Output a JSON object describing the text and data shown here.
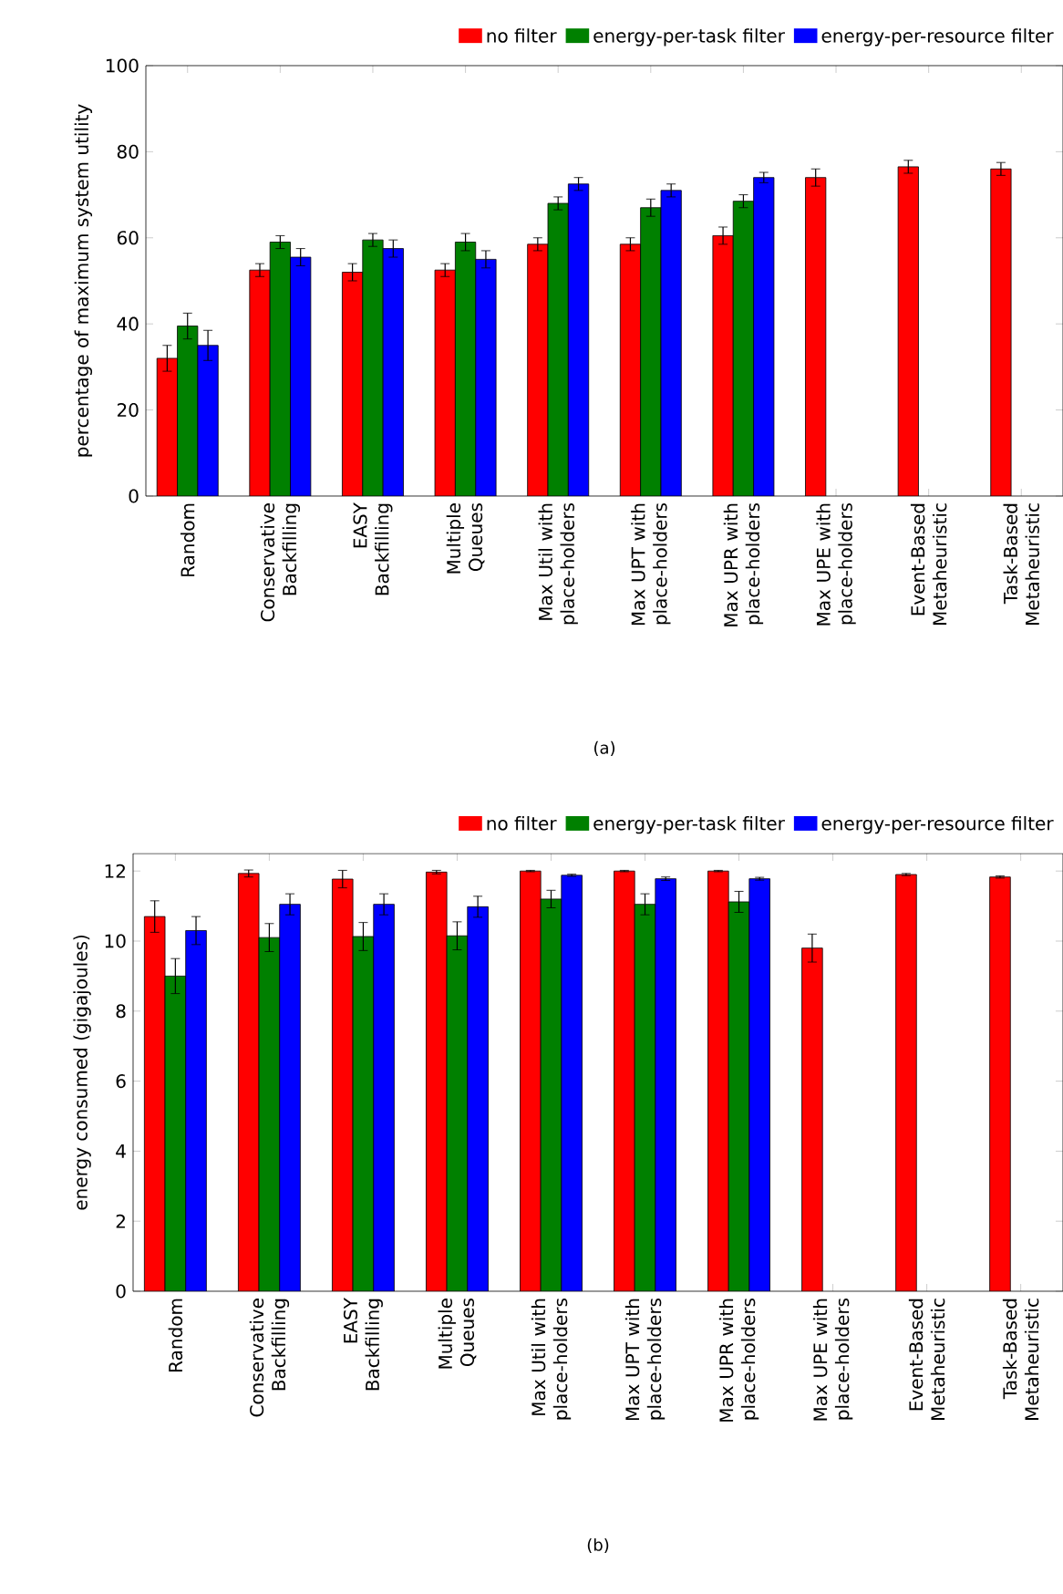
{
  "chart_data": [
    {
      "type": "bar",
      "ylabel": "percentage of maximum system utility",
      "categories": [
        "Random",
        "Conservative Backfilling",
        "EASY Backfilling",
        "Multiple Queues",
        "Max Util with place-holders",
        "Max UPT with place-holders",
        "Max UPR with place-holders",
        "Max UPE with place-holders",
        "Event-Based Metaheuristic",
        "Task-Based Metaheuristic"
      ],
      "series": [
        {
          "name": "no filter",
          "color": "#ff0000",
          "values": [
            32,
            52.5,
            52,
            52.5,
            58.5,
            58.5,
            60.5,
            74,
            76.5,
            76
          ],
          "errors": [
            3,
            1.5,
            2,
            1.5,
            1.5,
            1.5,
            2,
            2,
            1.5,
            1.5
          ]
        },
        {
          "name": "energy-per-task filter",
          "color": "#008000",
          "values": [
            39.5,
            59,
            59.5,
            59,
            68,
            67,
            68.5,
            null,
            null,
            null
          ],
          "errors": [
            3,
            1.5,
            1.5,
            2,
            1.5,
            2,
            1.5,
            null,
            null,
            null
          ]
        },
        {
          "name": "energy-per-resource filter",
          "color": "#0000ff",
          "values": [
            35,
            55.5,
            57.5,
            55,
            72.5,
            71,
            74,
            null,
            null,
            null
          ],
          "errors": [
            3.5,
            2,
            2,
            2,
            1.5,
            1.5,
            1.2,
            null,
            null,
            null
          ]
        }
      ],
      "ylim": [
        0,
        100
      ],
      "yticks": [
        0,
        20,
        40,
        60,
        80,
        100
      ],
      "legend": "top",
      "grid": false,
      "annotations": [
        "(a)"
      ]
    },
    {
      "type": "bar",
      "ylabel": "energy consumed (gigajoules)",
      "categories": [
        "Random",
        "Conservative Backfilling",
        "EASY Backfilling",
        "Multiple Queues",
        "Max Util with place-holders",
        "Max UPT with place-holders",
        "Max UPR with place-holders",
        "Max UPE with place-holders",
        "Event-Based Metaheuristic",
        "Task-Based Metaheuristic"
      ],
      "series": [
        {
          "name": "no filter",
          "color": "#ff0000",
          "values": [
            10.7,
            11.93,
            11.77,
            11.97,
            12.0,
            12.0,
            12.0,
            9.8,
            11.9,
            11.83
          ],
          "errors": [
            0.45,
            0.1,
            0.25,
            0.05,
            0.02,
            0.02,
            0.02,
            0.4,
            0.03,
            0.03
          ]
        },
        {
          "name": "energy-per-task filter",
          "color": "#008000",
          "values": [
            9.0,
            10.1,
            10.13,
            10.15,
            11.2,
            11.05,
            11.12,
            null,
            null,
            null
          ],
          "errors": [
            0.5,
            0.4,
            0.4,
            0.4,
            0.25,
            0.3,
            0.3,
            null,
            null,
            null
          ]
        },
        {
          "name": "energy-per-resource filter",
          "color": "#0000ff",
          "values": [
            10.3,
            11.05,
            11.05,
            10.98,
            11.88,
            11.78,
            11.78,
            null,
            null,
            null
          ],
          "errors": [
            0.4,
            0.3,
            0.3,
            0.3,
            0.03,
            0.05,
            0.04,
            null,
            null,
            null
          ]
        }
      ],
      "ylim": [
        0,
        12.5
      ],
      "yticks": [
        0,
        2,
        4,
        6,
        8,
        10,
        12
      ],
      "legend": "top",
      "grid": false,
      "annotations": [
        "(b)"
      ]
    }
  ]
}
